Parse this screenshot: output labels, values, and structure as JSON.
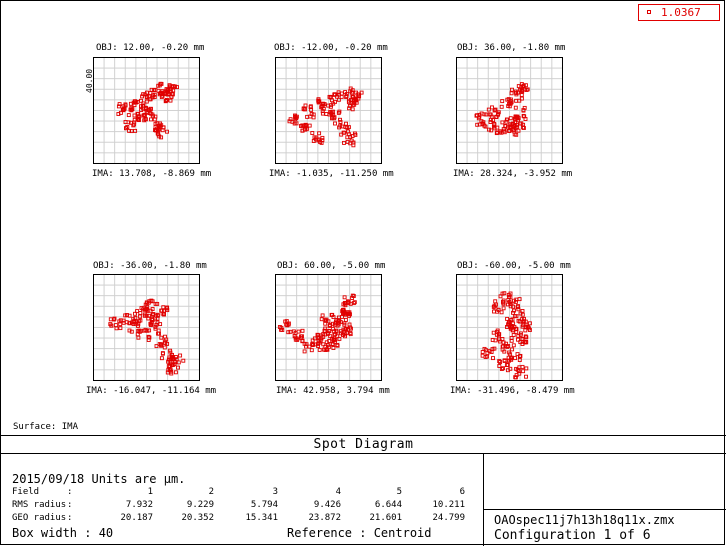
{
  "legend": {
    "value": "1.0367",
    "color": "#e00000"
  },
  "scale_label": "40.00",
  "fields": [
    {
      "obj": "OBJ: 12.00, -0.20 mm",
      "ima": "IMA: 13.708, -8.869 mm"
    },
    {
      "obj": "OBJ: -12.00, -0.20 mm",
      "ima": "IMA: -1.035, -11.250 mm"
    },
    {
      "obj": "OBJ: 36.00, -1.80 mm",
      "ima": "IMA: 28.324, -3.952 mm"
    },
    {
      "obj": "OBJ: -36.00, -1.80 mm",
      "ima": "IMA: -16.047, -11.164 mm"
    },
    {
      "obj": "OBJ: 60.00, -5.00 mm",
      "ima": "IMA: 42.958, 3.794 mm"
    },
    {
      "obj": "OBJ: -60.00, -5.00 mm",
      "ima": "IMA: -31.496, -8.479 mm"
    }
  ],
  "surface": "Surface: IMA",
  "title": "Spot Diagram",
  "info": {
    "date_line": "2015/09/18  Units are µm.",
    "field_label": "Field",
    "rms_label": "RMS radius",
    "geo_label": "GEO radius",
    "colon": ":",
    "field_numbers": [
      "1",
      "2",
      "3",
      "4",
      "5",
      "6"
    ],
    "rms_values": [
      "7.932",
      "9.229",
      "5.794",
      "9.426",
      "6.644",
      "10.211"
    ],
    "geo_values": [
      "20.187",
      "20.352",
      "15.341",
      "23.872",
      "21.601",
      "24.799"
    ],
    "box_width": "Box width  : 40",
    "reference": "Reference  : Centroid"
  },
  "file": {
    "name": "OAOspec11j7h13h18q11x.zmx",
    "configuration": "Configuration 1 of 6"
  }
}
